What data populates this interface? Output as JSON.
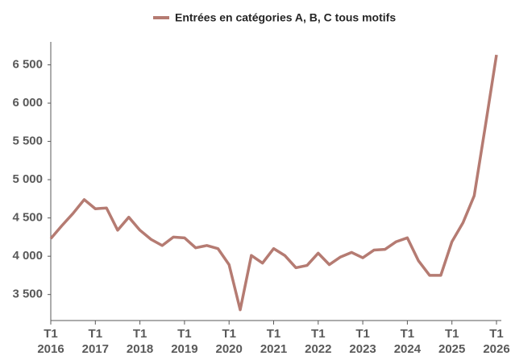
{
  "chart_data": {
    "type": "line",
    "categories": [
      [
        "T1",
        "2016"
      ],
      null,
      null,
      null,
      [
        "T1",
        "2017"
      ],
      null,
      null,
      null,
      [
        "T1",
        "2018"
      ],
      null,
      null,
      null,
      [
        "T1",
        "2019"
      ],
      null,
      null,
      null,
      [
        "T1",
        "2020"
      ],
      null,
      null,
      null,
      [
        "T1",
        "2021"
      ],
      null,
      null,
      null,
      [
        "T1",
        "2022"
      ],
      null,
      null,
      null,
      [
        "T1",
        "2023"
      ],
      null,
      null,
      null,
      [
        "T1",
        "2024"
      ],
      null,
      null,
      null,
      [
        "T1",
        "2025"
      ],
      null,
      null,
      null,
      [
        "T1",
        "2026"
      ]
    ],
    "series": [
      {
        "name": "Entrées en catégories A, B, C tous motifs",
        "color": "#b57b72",
        "values": [
          4230,
          4400,
          4560,
          4740,
          4620,
          4630,
          4340,
          4510,
          4340,
          4220,
          4140,
          4250,
          4240,
          4110,
          4140,
          4100,
          3890,
          3300,
          4010,
          3910,
          4100,
          4010,
          3850,
          3880,
          4040,
          3890,
          3990,
          4050,
          3980,
          4080,
          4090,
          4190,
          4240,
          3940,
          3750,
          3750,
          4190,
          4440,
          4790,
          5700,
          6630
        ]
      }
    ],
    "ylim": [
      3160,
      6800
    ],
    "yticks": [
      {
        "value": 3500,
        "label": "3 500"
      },
      {
        "value": 4000,
        "label": "4 000"
      },
      {
        "value": 4500,
        "label": "4 500"
      },
      {
        "value": 5000,
        "label": "5 000"
      },
      {
        "value": 5500,
        "label": "5 500"
      },
      {
        "value": 6000,
        "label": "6 000"
      },
      {
        "value": 6500,
        "label": "6 500"
      }
    ],
    "grid": false
  }
}
